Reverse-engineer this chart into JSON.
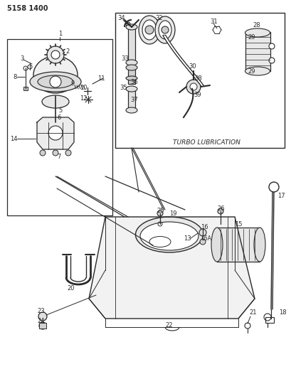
{
  "title_code": "5158 1400",
  "bg": "#ffffff",
  "lc": "#2a2a2a",
  "tc": "#2a2a2a",
  "turbo_label": "TURBO LUBRICATION",
  "figsize": [
    4.1,
    5.33
  ],
  "dpi": 100
}
